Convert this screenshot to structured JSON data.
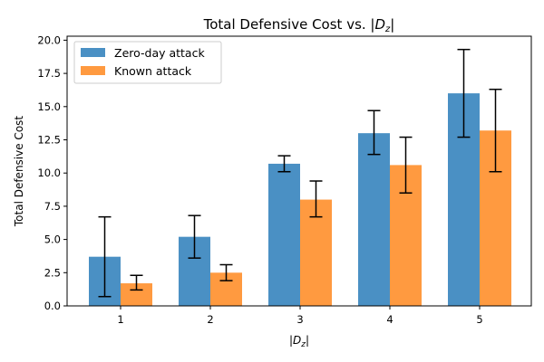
{
  "chart_data": {
    "type": "bar",
    "title_prefix": "Total Defensive Cost vs. |",
    "title_var": "D",
    "title_sub": "z",
    "title_suffix": "|",
    "xlabel_prefix": "|",
    "xlabel_var": "D",
    "xlabel_sub": "z",
    "xlabel_suffix": "|",
    "ylabel": "Total Defensive Cost",
    "categories": [
      "1",
      "2",
      "3",
      "4",
      "5"
    ],
    "ylim": [
      0,
      20.3
    ],
    "yticks": [
      "0.0",
      "2.5",
      "5.0",
      "7.5",
      "10.0",
      "12.5",
      "15.0",
      "17.5",
      "20.0"
    ],
    "legend_position": "top-left",
    "grid": false,
    "series": [
      {
        "name": "Zero-day attack",
        "color": "#4a90c4",
        "values": [
          3.7,
          5.2,
          10.7,
          13.0,
          16.0
        ],
        "err_low": [
          0.7,
          3.6,
          10.1,
          11.4,
          12.7
        ],
        "err_high": [
          6.7,
          6.8,
          11.3,
          14.7,
          19.3
        ]
      },
      {
        "name": "Known attack",
        "color": "#ff9a40",
        "values": [
          1.7,
          2.5,
          8.0,
          10.6,
          13.2
        ],
        "err_low": [
          1.2,
          1.9,
          6.7,
          8.5,
          10.1
        ],
        "err_high": [
          2.3,
          3.1,
          9.4,
          12.7,
          16.3
        ]
      }
    ]
  }
}
